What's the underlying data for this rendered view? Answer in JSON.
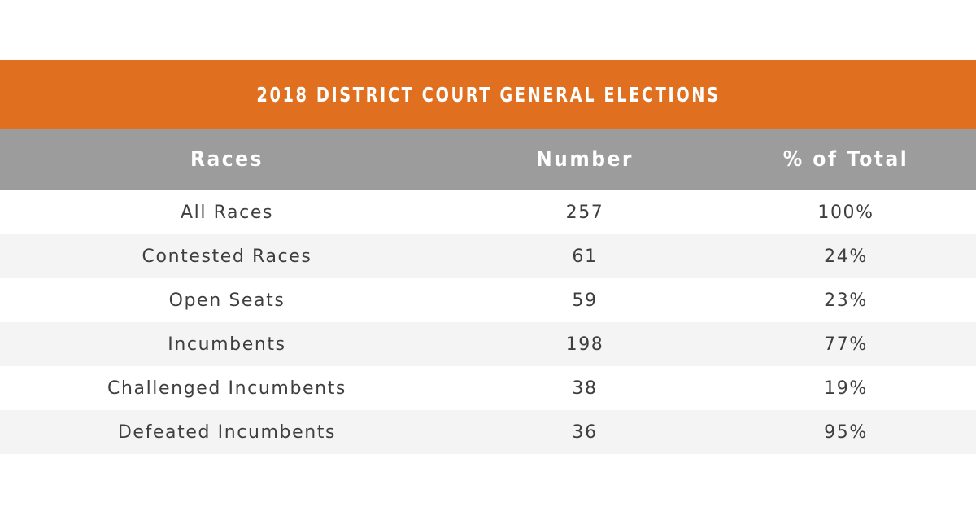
{
  "title": "2018 DISTRICT COURT GENERAL ELECTIONS",
  "colors": {
    "title_bar": "#e0701f",
    "header_bar": "#9d9c9c",
    "row_alt": "#f4f4f4",
    "text": "#3e3e3e"
  },
  "headers": [
    "Races",
    "Number",
    "% of Total"
  ],
  "rows": [
    [
      "All Races",
      "257",
      "100%"
    ],
    [
      "Contested Races",
      "61",
      "24%"
    ],
    [
      "Open Seats",
      "59",
      "23%"
    ],
    [
      "Incumbents",
      "198",
      "77%"
    ],
    [
      "Challenged Incumbents",
      "38",
      "19%"
    ],
    [
      "Defeated Incumbents",
      "36",
      "95%"
    ]
  ],
  "chart_data": {
    "type": "table",
    "title": "2018 DISTRICT COURT GENERAL ELECTIONS",
    "columns": [
      "Races",
      "Number",
      "% of Total"
    ],
    "rows": [
      {
        "race": "All Races",
        "number": 257,
        "percent_of_total": 100
      },
      {
        "race": "Contested Races",
        "number": 61,
        "percent_of_total": 24
      },
      {
        "race": "Open Seats",
        "number": 59,
        "percent_of_total": 23
      },
      {
        "race": "Incumbents",
        "number": 198,
        "percent_of_total": 77
      },
      {
        "race": "Challenged Incumbents",
        "number": 38,
        "percent_of_total": 19
      },
      {
        "race": "Defeated Incumbents",
        "number": 36,
        "percent_of_total": 95
      }
    ]
  }
}
